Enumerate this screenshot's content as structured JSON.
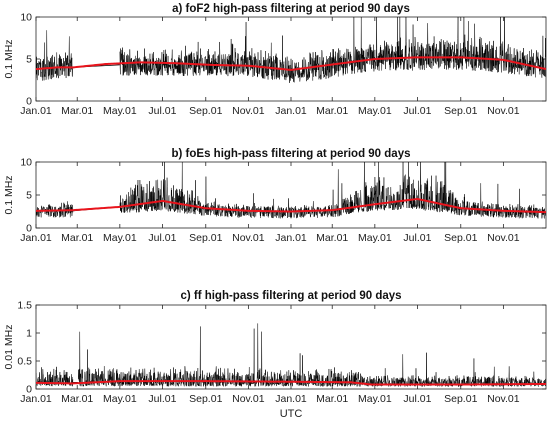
{
  "chart_data": [
    {
      "type": "line",
      "title": "a) foF2 high-pass filtering at period 90 days",
      "ylabel": "0.1 MHz",
      "xlabel": "",
      "ylim": [
        0,
        10
      ],
      "yticks": [
        0,
        5,
        10
      ],
      "x_tick_labels": [
        "Jan.01",
        "Mar.01",
        "May.01",
        "Jul.01",
        "Sep.01",
        "Nov.01",
        "Jan.01",
        "Mar.01",
        "May.01",
        "Jul.01",
        "Sep.01",
        "Nov.01"
      ],
      "x_tick_days": [
        0,
        59,
        120,
        181,
        243,
        304,
        365,
        424,
        485,
        546,
        608,
        669
      ],
      "x_range_days": [
        0,
        730
      ],
      "gap_days": [
        53,
        120
      ],
      "series": [
        {
          "color": "#000000",
          "kind": "noisy",
          "base": [
            [
              0,
              3.6
            ],
            [
              30,
              4.0
            ],
            [
              53,
              4.0
            ],
            [
              120,
              4.3
            ],
            [
              243,
              4.3
            ],
            [
              304,
              4.3
            ],
            [
              365,
              3.4
            ],
            [
              424,
              4.1
            ],
            [
              485,
              4.9
            ],
            [
              546,
              5.0
            ],
            [
              608,
              5.1
            ],
            [
              669,
              4.7
            ],
            [
              730,
              3.9
            ]
          ],
          "up": [
            [
              0,
              2.2
            ],
            [
              365,
              2.2
            ],
            [
              450,
              2.5
            ],
            [
              520,
              2.8
            ],
            [
              650,
              2.9
            ],
            [
              730,
              2.5
            ]
          ],
          "down": [
            [
              0,
              1.3
            ],
            [
              730,
              1.4
            ]
          ],
          "spike": 0.6
        },
        {
          "color": "#e8141c",
          "kind": "smooth",
          "points": [
            [
              0,
              3.8
            ],
            [
              30,
              4.0
            ],
            [
              53,
              4.0
            ],
            [
              100,
              4.4
            ],
            [
              150,
              4.6
            ],
            [
              200,
              4.5
            ],
            [
              250,
              4.3
            ],
            [
              304,
              4.2
            ],
            [
              365,
              3.7
            ],
            [
              420,
              4.3
            ],
            [
              485,
              5.0
            ],
            [
              546,
              5.2
            ],
            [
              608,
              5.2
            ],
            [
              669,
              4.9
            ],
            [
              730,
              3.8
            ]
          ]
        }
      ]
    },
    {
      "type": "line",
      "title": "b) foEs high-pass filtering at period 90 days",
      "ylabel": "0.1 MHz",
      "xlabel": "",
      "ylim": [
        0,
        10
      ],
      "yticks": [
        0,
        5,
        10
      ],
      "x_tick_labels": [
        "Jan.01",
        "Mar.01",
        "May.01",
        "Jul.01",
        "Sep.01",
        "Nov.01",
        "Jan.01",
        "Mar.01",
        "May.01",
        "Jul.01",
        "Sep.01",
        "Nov.01"
      ],
      "x_tick_days": [
        0,
        59,
        120,
        181,
        243,
        304,
        365,
        424,
        485,
        546,
        608,
        669
      ],
      "x_range_days": [
        0,
        730
      ],
      "gap_days": [
        53,
        120
      ],
      "series": [
        {
          "color": "#000000",
          "kind": "noisy",
          "base": [
            [
              0,
              2.6
            ],
            [
              53,
              2.6
            ],
            [
              120,
              3.2
            ],
            [
              181,
              3.6
            ],
            [
              243,
              2.8
            ],
            [
              304,
              2.5
            ],
            [
              365,
              2.4
            ],
            [
              424,
              2.6
            ],
            [
              485,
              3.6
            ],
            [
              546,
              3.8
            ],
            [
              608,
              2.9
            ],
            [
              669,
              2.5
            ],
            [
              730,
              2.4
            ]
          ],
          "up": [
            [
              0,
              1.0
            ],
            [
              120,
              2.5
            ],
            [
              150,
              4.5
            ],
            [
              200,
              4.5
            ],
            [
              243,
              1.5
            ],
            [
              304,
              1.0
            ],
            [
              424,
              1.2
            ],
            [
              470,
              4.5
            ],
            [
              580,
              5.0
            ],
            [
              620,
              1.5
            ],
            [
              730,
              1.0
            ]
          ],
          "down": [
            [
              0,
              1.0
            ],
            [
              730,
              1.0
            ]
          ],
          "spike": 0.8
        },
        {
          "color": "#e8141c",
          "kind": "smooth",
          "points": [
            [
              0,
              2.6
            ],
            [
              53,
              2.7
            ],
            [
              120,
              3.2
            ],
            [
              181,
              4.1
            ],
            [
              243,
              3.0
            ],
            [
              304,
              2.6
            ],
            [
              365,
              2.5
            ],
            [
              424,
              2.7
            ],
            [
              485,
              3.6
            ],
            [
              546,
              4.4
            ],
            [
              608,
              3.0
            ],
            [
              669,
              2.6
            ],
            [
              730,
              2.4
            ]
          ]
        }
      ]
    },
    {
      "type": "line",
      "title": "c) ff high-pass filtering at period 90 days",
      "ylabel": "0.01 MHz",
      "xlabel": "UTC",
      "ylim": [
        0,
        1.5
      ],
      "yticks": [
        0,
        0.5,
        1,
        1.5
      ],
      "x_tick_labels": [
        "Jan.01",
        "Mar.01",
        "May.01",
        "Jul.01",
        "Sep.01",
        "Nov.01",
        "Jan.01",
        "Mar.01",
        "May.01",
        "Jul.01",
        "Sep.01",
        "Nov.01"
      ],
      "x_tick_days": [
        0,
        59,
        120,
        181,
        243,
        304,
        365,
        424,
        485,
        546,
        608,
        669
      ],
      "x_range_days": [
        0,
        730
      ],
      "gap_days": [
        53,
        60
      ],
      "series": [
        {
          "color": "#000000",
          "kind": "noisy",
          "base": [
            [
              0,
              0.12
            ],
            [
              730,
              0.1
            ]
          ],
          "up": [
            [
              0,
              0.3
            ],
            [
              450,
              0.3
            ],
            [
              470,
              0.15
            ],
            [
              730,
              0.15
            ]
          ],
          "down": [
            [
              0,
              0.07
            ],
            [
              730,
              0.06
            ]
          ],
          "spike": 0.9
        },
        {
          "color": "#e8141c",
          "kind": "smooth",
          "points": [
            [
              0,
              0.11
            ],
            [
              53,
              0.1
            ],
            [
              120,
              0.14
            ],
            [
              243,
              0.14
            ],
            [
              365,
              0.13
            ],
            [
              450,
              0.12
            ],
            [
              480,
              0.08
            ],
            [
              608,
              0.08
            ],
            [
              730,
              0.09
            ]
          ]
        }
      ]
    }
  ]
}
